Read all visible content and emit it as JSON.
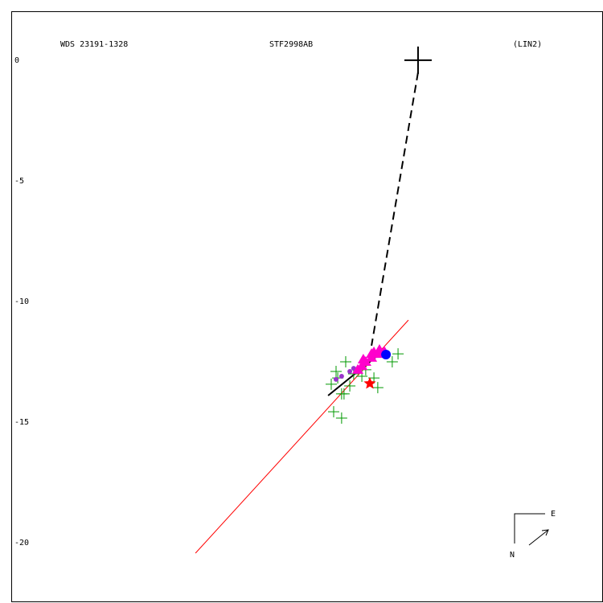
{
  "chart_data": {
    "type": "scatter",
    "title": "WDS 23191-1328",
    "subtitle": "STF2998AB",
    "annotation": "(LIN2)",
    "compass": {
      "east": "E",
      "north": "N"
    },
    "xlim": [
      -16.87,
      7.67
    ],
    "ylim": [
      -22.43,
      2.03
    ],
    "yticks": [
      0,
      -5,
      -10,
      -15,
      -20
    ],
    "lines": [
      {
        "color": "#ff0000",
        "dash": false,
        "x": [
          -9.23,
          -0.4
        ],
        "values": [
          -20.43,
          -10.77
        ]
      },
      {
        "color": "#000000",
        "dash": true,
        "x": [
          0,
          -1.93
        ],
        "values": [
          -0.5,
          -11.83
        ]
      },
      {
        "color": "#000000",
        "dash": false,
        "x": [
          -3.73,
          -1.67
        ],
        "values": [
          -13.9,
          -12.23
        ]
      }
    ],
    "series": [
      {
        "color": "#009900",
        "marker": "cross",
        "x": [
          -3.5,
          -3.17,
          -0.83,
          -1.07,
          -1.67,
          -3,
          -3.33,
          -3.6,
          -2.67,
          -3.17,
          -2.17,
          -1.83,
          -2.83,
          -2.33,
          -3.4,
          -3.07
        ],
        "values": [
          -14.57,
          -14.83,
          -12.17,
          -12.5,
          -13.57,
          -12.5,
          -13.17,
          -13.43,
          -13,
          -13.83,
          -12.83,
          -13.17,
          -13.5,
          -13.1,
          -12.9,
          -13.83
        ]
      },
      {
        "color": "#9933cc",
        "marker": "dot",
        "x": [
          -3.17,
          -2.83,
          -2.67,
          -3.4
        ],
        "values": [
          -13.1,
          -12.9,
          -12.77,
          -13.23
        ]
      },
      {
        "color": "#ff00cc",
        "marker": "triangle",
        "x": [
          -1.4,
          -1.67,
          -1.93,
          -2.17,
          -2.33,
          -1.93,
          -1.6,
          -2.5,
          -1.83,
          -2.27
        ],
        "values": [
          -12.07,
          -12.17,
          -12.33,
          -12.5,
          -12.67,
          -12.17,
          -12,
          -12.83,
          -12.1,
          -12.4
        ]
      },
      {
        "color": "#0000ff",
        "marker": "disc",
        "x": [
          -1.33
        ],
        "values": [
          -12.2
        ]
      },
      {
        "color": "#ff0000",
        "marker": "star",
        "x": [
          -2
        ],
        "values": [
          -13.4
        ]
      },
      {
        "color": "#000000",
        "marker": "big-cross",
        "x": [
          0
        ],
        "values": [
          0
        ]
      }
    ]
  }
}
